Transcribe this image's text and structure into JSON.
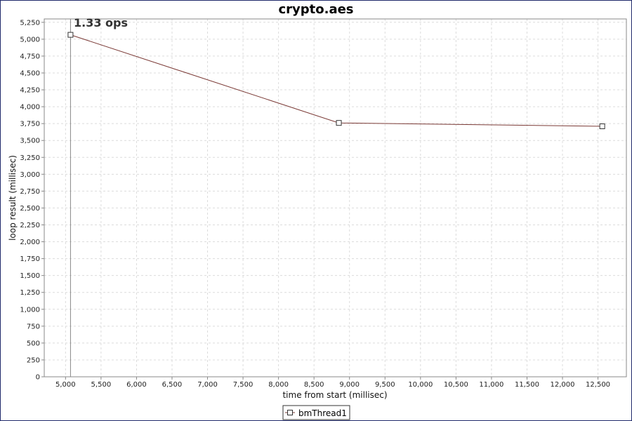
{
  "colors": {
    "series": "#7b3a36",
    "grid": "#dcdcdc",
    "axis": "#888888",
    "marker_fill": "#ffffff",
    "marker_stroke": "#333333",
    "crosshair": "#888888"
  },
  "chart_data": {
    "type": "line",
    "title": "crypto.aes",
    "xlabel": "time from start (millisec)",
    "ylabel": "loop result (millisec)",
    "xlim": [
      4700,
      12900
    ],
    "ylim": [
      0,
      5300
    ],
    "x_ticks": [
      5000,
      5500,
      6000,
      6500,
      7000,
      7500,
      8000,
      8500,
      9000,
      9500,
      10000,
      10500,
      11000,
      11500,
      12000,
      12500
    ],
    "x_tick_labels": [
      "5,000",
      "5,500",
      "6,000",
      "6,500",
      "7,000",
      "7,500",
      "8,000",
      "8,500",
      "9,000",
      "9,500",
      "10,000",
      "10,500",
      "11,000",
      "11,500",
      "12,000",
      "12,500"
    ],
    "y_ticks": [
      0,
      250,
      500,
      750,
      1000,
      1250,
      1500,
      1750,
      2000,
      2250,
      2500,
      2750,
      3000,
      3250,
      3500,
      3750,
      4000,
      4250,
      4500,
      4750,
      5000,
      5250
    ],
    "y_tick_labels": [
      "0",
      "250",
      "500",
      "750",
      "1,000",
      "1,250",
      "1,500",
      "1,750",
      "2,000",
      "2,250",
      "2,500",
      "2,750",
      "3,000",
      "3,250",
      "3,500",
      "3,750",
      "4,000",
      "4,250",
      "4,500",
      "4,750",
      "5,000",
      "5,250"
    ],
    "grid": true,
    "legend_placement": "bottom-center",
    "series": [
      {
        "name": "bmThread1",
        "marker": "square",
        "points": [
          {
            "x": 5070,
            "y": 5065
          },
          {
            "x": 8850,
            "y": 3760
          },
          {
            "x": 12560,
            "y": 3710
          }
        ]
      }
    ],
    "crosshair_x": 5070,
    "annotation": "1.33 ops"
  }
}
